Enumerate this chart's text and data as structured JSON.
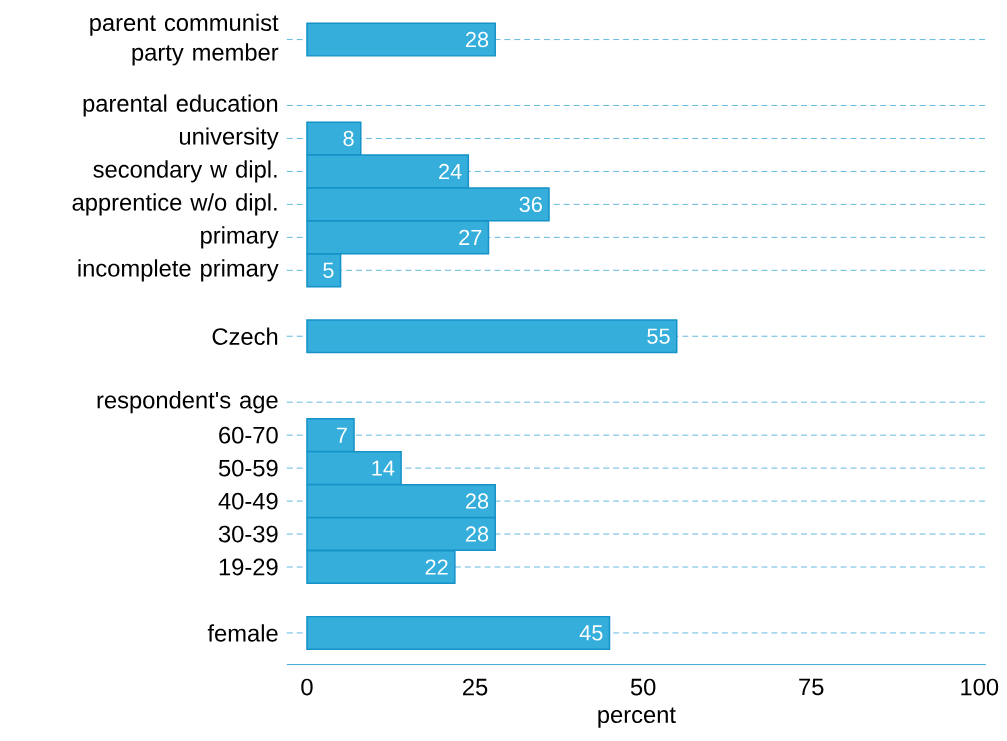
{
  "chart_data": {
    "type": "bar",
    "orientation": "horizontal",
    "xlabel": "percent",
    "categories": [
      "parent communist party member",
      null,
      "parental education",
      "university",
      "secondary w dipl.",
      "apprentice w/o dipl.",
      "primary",
      "incomplete primary",
      null,
      "Czech",
      null,
      "respondent's age",
      "60-70",
      "50-59",
      "40-49",
      "30-39",
      "19-29",
      null,
      "female"
    ],
    "values": [
      28,
      null,
      null,
      8,
      24,
      36,
      27,
      5,
      null,
      55,
      null,
      null,
      7,
      14,
      28,
      28,
      22,
      null,
      45
    ],
    "color": "#35aedb",
    "data_labels": true,
    "grid": "y",
    "xlim": [
      -3,
      101
    ],
    "xticks": [
      0,
      25,
      50,
      75,
      100
    ]
  }
}
